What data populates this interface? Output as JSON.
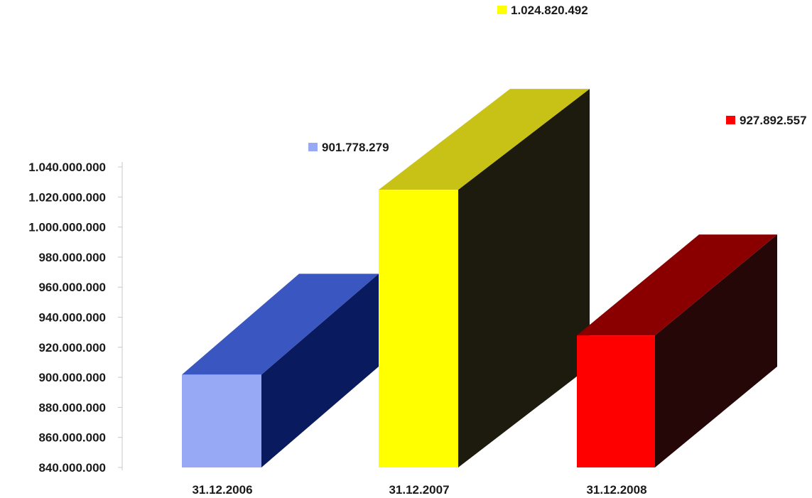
{
  "chart_data": {
    "type": "bar",
    "categories": [
      "31.12.2006",
      "31.12.2007",
      "31.12.2008"
    ],
    "values": [
      901778279,
      1024820492,
      927892557
    ],
    "data_labels": [
      "901.778.279",
      "1.024.820.492",
      "927.892.557"
    ],
    "colors": [
      "#97a9f4",
      "#ffff00",
      "#ff0000"
    ],
    "side_colors": [
      "#0a1a5e",
      "#1c1b0d",
      "#250707"
    ],
    "top_colors": [
      "#3a56c0",
      "#c9c216",
      "#8a0000"
    ],
    "title": "",
    "xlabel": "",
    "ylabel": "",
    "ylim": [
      840000000,
      1040000000
    ],
    "yticks": [
      840000000,
      860000000,
      880000000,
      900000000,
      920000000,
      940000000,
      960000000,
      980000000,
      1000000000,
      1020000000,
      1040000000
    ],
    "ytick_labels": [
      "840.000.000",
      "860.000.000",
      "880.000.000",
      "900.000.000",
      "920.000.000",
      "940.000.000",
      "960.000.000",
      "980.000.000",
      "1.000.000.000",
      "1.020.000.000",
      "1.040.000.000"
    ],
    "grid": false,
    "legend": "none",
    "style": "3d-bars"
  }
}
